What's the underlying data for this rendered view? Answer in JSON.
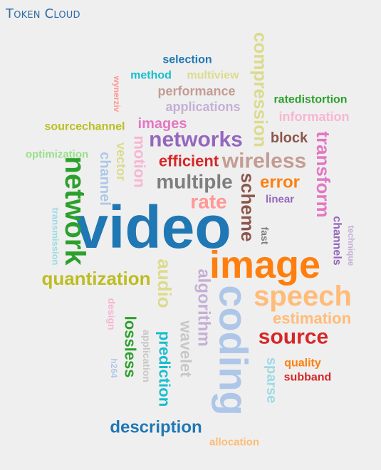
{
  "title": "Token Cloud",
  "words": [
    {
      "text": "video",
      "color": "#1f77b4"
    },
    {
      "text": "image",
      "color": "#ff7f0e"
    },
    {
      "text": "coding",
      "color": "#aec7e8"
    },
    {
      "text": "speech",
      "color": "#ffbb78"
    },
    {
      "text": "network",
      "color": "#2ca02c"
    },
    {
      "text": "source",
      "color": "#d62728"
    },
    {
      "text": "networks",
      "color": "#9467bd"
    },
    {
      "text": "compression",
      "color": "#dbdb8d"
    },
    {
      "text": "wireless",
      "color": "#c49c94"
    },
    {
      "text": "quantization",
      "color": "#bcbd22"
    },
    {
      "text": "audio",
      "color": "#dbdb8d"
    },
    {
      "text": "rate",
      "color": "#ff9896"
    },
    {
      "text": "multiple",
      "color": "#7f7f7f"
    },
    {
      "text": "transform",
      "color": "#e377c2"
    },
    {
      "text": "scheme",
      "color": "#8c564b"
    },
    {
      "text": "algorithm",
      "color": "#c5b0d5"
    },
    {
      "text": "description",
      "color": "#1f77b4"
    },
    {
      "text": "prediction",
      "color": "#17becf"
    },
    {
      "text": "estimation",
      "color": "#ffbb78"
    },
    {
      "text": "wavelet",
      "color": "#c7c7c7"
    },
    {
      "text": "error",
      "color": "#ff7f0e"
    },
    {
      "text": "motion",
      "color": "#f7b6d2"
    },
    {
      "text": "efficient",
      "color": "#d62728"
    },
    {
      "text": "lossless",
      "color": "#2ca02c"
    },
    {
      "text": "channel",
      "color": "#aec7e8"
    },
    {
      "text": "sparse",
      "color": "#9edae5"
    },
    {
      "text": "block",
      "color": "#8c564b"
    },
    {
      "text": "images",
      "color": "#e377c2"
    },
    {
      "text": "performance",
      "color": "#c49c94"
    },
    {
      "text": "applications",
      "color": "#c5b0d5"
    },
    {
      "text": "information",
      "color": "#f7b6d2"
    },
    {
      "text": "vector",
      "color": "#dbdb8d"
    },
    {
      "text": "sourcechannel",
      "color": "#bcbd22"
    },
    {
      "text": "selection",
      "color": "#1f77b4"
    },
    {
      "text": "method",
      "color": "#17becf"
    },
    {
      "text": "multiview",
      "color": "#dbdb8d"
    },
    {
      "text": "ratedistortion",
      "color": "#2ca02c"
    },
    {
      "text": "channels",
      "color": "#9467bd"
    },
    {
      "text": "quality",
      "color": "#ff7f0e"
    },
    {
      "text": "subband",
      "color": "#d62728"
    },
    {
      "text": "optimization",
      "color": "#98df8a"
    },
    {
      "text": "linear",
      "color": "#9467bd"
    },
    {
      "text": "fast",
      "color": "#7f7f7f"
    },
    {
      "text": "design",
      "color": "#f7b6d2"
    },
    {
      "text": "application",
      "color": "#c7c7c7"
    },
    {
      "text": "allocation",
      "color": "#ffbb78"
    },
    {
      "text": "transmission",
      "color": "#9edae5"
    },
    {
      "text": "technique",
      "color": "#c5b0d5"
    },
    {
      "text": "wynerziv",
      "color": "#ff9896"
    },
    {
      "text": "h264",
      "color": "#aec7e8"
    }
  ]
}
